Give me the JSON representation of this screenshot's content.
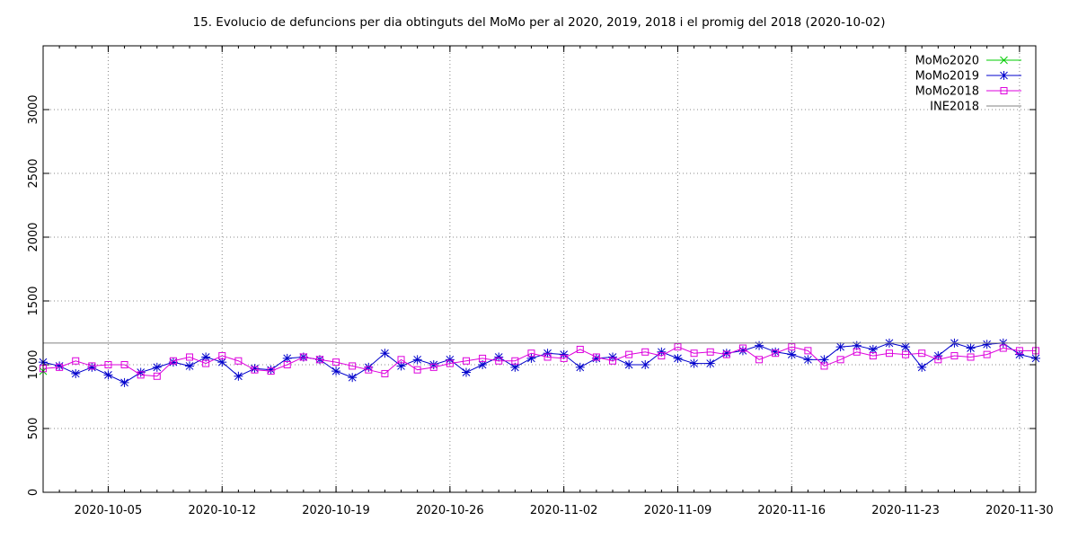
{
  "chart_data": {
    "type": "line",
    "title": "15. Evolucio de defuncions per dia obtinguts del MoMo per al 2020, 2019, 2018 i el promig del 2018 (2020-10-02)",
    "xlabel": "",
    "ylabel": "",
    "ylim": [
      0,
      3500
    ],
    "xlim": [
      "2020-10-01",
      "2020-12-01"
    ],
    "y_ticks": [
      0,
      500,
      1000,
      1500,
      2000,
      2500,
      3000
    ],
    "x_ticks": [
      "2020-10-05",
      "2020-10-12",
      "2020-10-19",
      "2020-10-26",
      "2020-11-02",
      "2020-11-09",
      "2020-11-16",
      "2020-11-23",
      "2020-11-30"
    ],
    "grid": true,
    "legend_position": "top-right",
    "x_dates": [
      "2020-10-01",
      "2020-10-02",
      "2020-10-03",
      "2020-10-04",
      "2020-10-05",
      "2020-10-06",
      "2020-10-07",
      "2020-10-08",
      "2020-10-09",
      "2020-10-10",
      "2020-10-11",
      "2020-10-12",
      "2020-10-13",
      "2020-10-14",
      "2020-10-15",
      "2020-10-16",
      "2020-10-17",
      "2020-10-18",
      "2020-10-19",
      "2020-10-20",
      "2020-10-21",
      "2020-10-22",
      "2020-10-23",
      "2020-10-24",
      "2020-10-25",
      "2020-10-26",
      "2020-10-27",
      "2020-10-28",
      "2020-10-29",
      "2020-10-30",
      "2020-10-31",
      "2020-11-01",
      "2020-11-02",
      "2020-11-03",
      "2020-11-04",
      "2020-11-05",
      "2020-11-06",
      "2020-11-07",
      "2020-11-08",
      "2020-11-09",
      "2020-11-10",
      "2020-11-11",
      "2020-11-12",
      "2020-11-13",
      "2020-11-14",
      "2020-11-15",
      "2020-11-16",
      "2020-11-17",
      "2020-11-18",
      "2020-11-19",
      "2020-11-20",
      "2020-11-21",
      "2020-11-22",
      "2020-11-23",
      "2020-11-24",
      "2020-11-25",
      "2020-11-26",
      "2020-11-27",
      "2020-11-28",
      "2020-11-29",
      "2020-11-30",
      "2020-12-01"
    ],
    "series": [
      {
        "name": "MoMo2020",
        "color": "#00cc00",
        "marker": "x",
        "dates": [
          "2020-10-01"
        ],
        "values": [
          950
        ]
      },
      {
        "name": "MoMo2019",
        "color": "#0000cc",
        "marker": "asterisk",
        "values": [
          1020,
          990,
          930,
          980,
          920,
          860,
          940,
          980,
          1020,
          990,
          1060,
          1020,
          910,
          970,
          960,
          1050,
          1060,
          1040,
          950,
          900,
          980,
          1090,
          990,
          1040,
          1000,
          1040,
          940,
          1000,
          1060,
          980,
          1050,
          1090,
          1080,
          980,
          1050,
          1060,
          1000,
          1000,
          1100,
          1050,
          1010,
          1010,
          1090,
          1110,
          1150,
          1100,
          1080,
          1040,
          1040,
          1140,
          1150,
          1120,
          1170,
          1140,
          980,
          1070,
          1170,
          1130,
          1160,
          1170,
          1080,
          1050
        ]
      },
      {
        "name": "MoMo2018",
        "color": "#dd00dd",
        "marker": "square",
        "values": [
          970,
          980,
          1030,
          990,
          1000,
          1000,
          920,
          910,
          1030,
          1060,
          1010,
          1070,
          1030,
          960,
          950,
          1000,
          1060,
          1040,
          1020,
          990,
          960,
          930,
          1040,
          960,
          980,
          1010,
          1030,
          1050,
          1030,
          1030,
          1090,
          1060,
          1050,
          1120,
          1060,
          1030,
          1080,
          1100,
          1070,
          1140,
          1090,
          1100,
          1080,
          1130,
          1040,
          1090,
          1140,
          1110,
          990,
          1040,
          1100,
          1070,
          1090,
          1080,
          1090,
          1040,
          1070,
          1060,
          1080,
          1130,
          1110,
          1110
        ]
      },
      {
        "name": "INE2018",
        "color": "#808080",
        "marker": "none",
        "constant": 1170
      }
    ]
  }
}
